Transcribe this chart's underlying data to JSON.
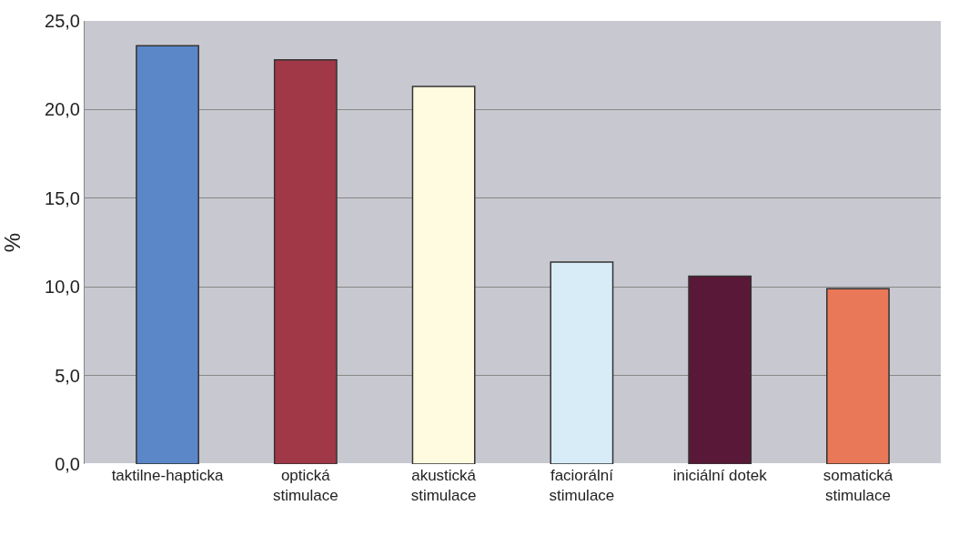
{
  "chart_data": {
    "type": "bar",
    "ylabel": "%",
    "categories": [
      "taktilne-hapticka",
      "optická\nstimulace",
      "akustická\nstimulace",
      "faciorální\nstimulace",
      "iniciální dotek",
      "somatická\nstimulace"
    ],
    "values": [
      23.6,
      22.8,
      21.3,
      11.4,
      10.6,
      9.9
    ],
    "colors": [
      "#5b86c8",
      "#a03848",
      "#fffbe0",
      "#d8ecf8",
      "#5a1838",
      "#e87858"
    ],
    "ylim": [
      0,
      25
    ],
    "yticks": [
      {
        "value": 0,
        "label": "0,0"
      },
      {
        "value": 5,
        "label": "5,0"
      },
      {
        "value": 10,
        "label": "10,0"
      },
      {
        "value": 15,
        "label": "15,0"
      },
      {
        "value": 20,
        "label": "20,0"
      },
      {
        "value": 25,
        "label": "25,0"
      }
    ],
    "grid": "y"
  }
}
